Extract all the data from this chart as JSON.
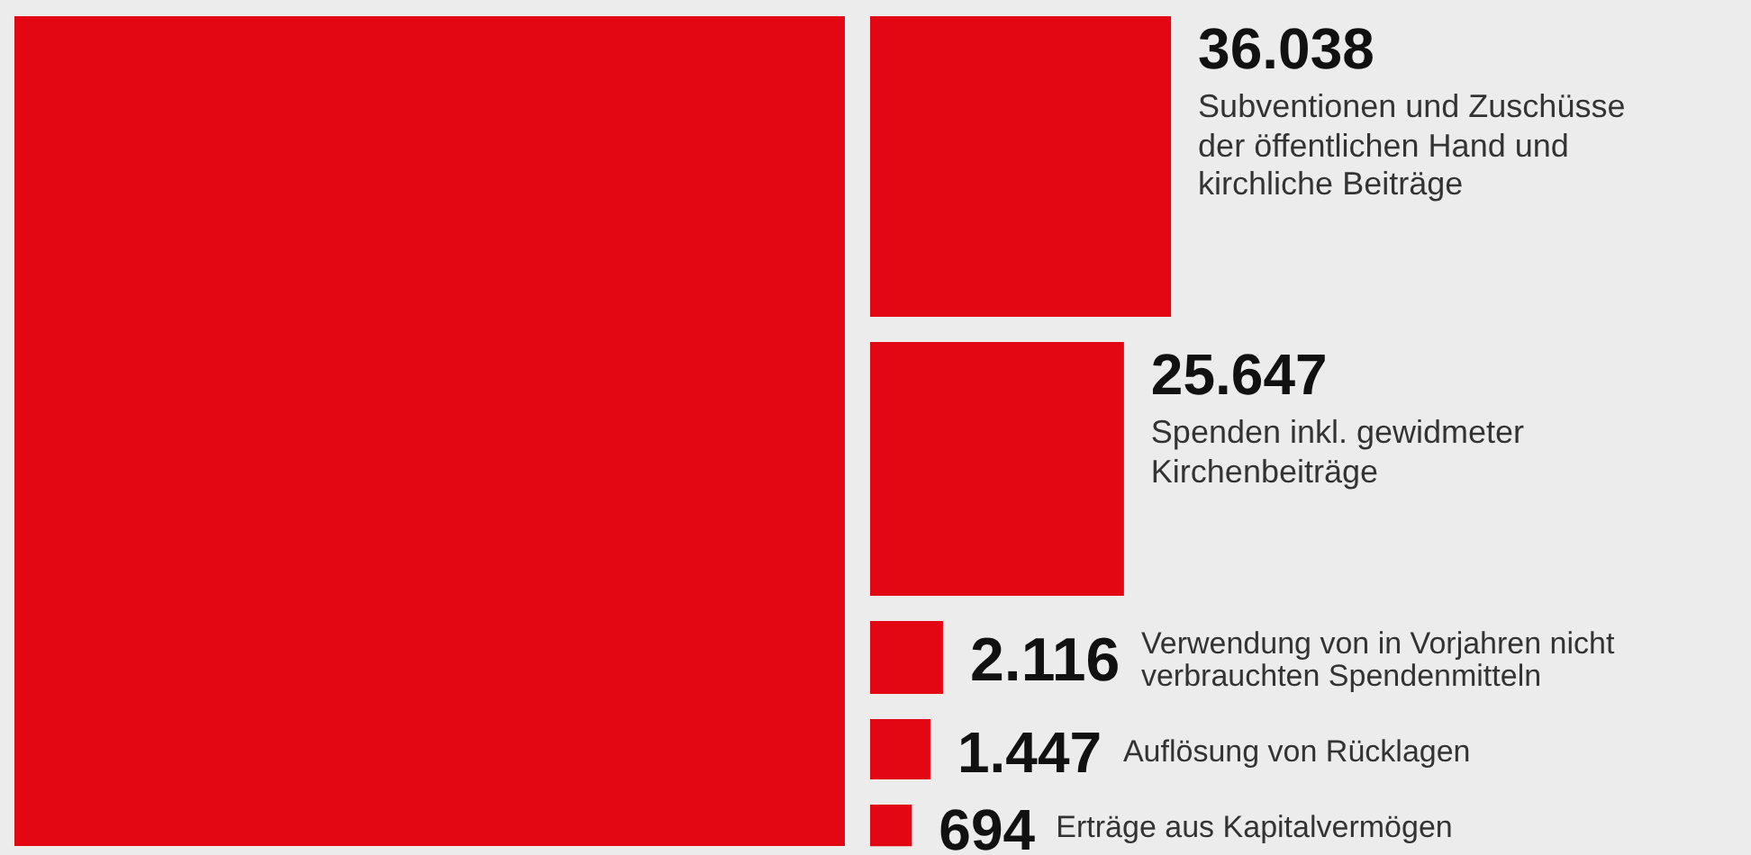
{
  "chart_data": {
    "type": "other",
    "categories": [
      null,
      "Subventionen und Zuschüsse der öffentlichen Hand und kirchliche Beiträge",
      "Spenden inkl. gewidmeter Kirchenbeiträge",
      "Verwendung von in Vorjahren nicht verbrauchten Spendenmitteln",
      "Auflösung von Rücklagen",
      "Erträge aus Kapitalvermögen"
    ],
    "values": [
      null,
      36038,
      25647,
      2116,
      1447,
      694
    ],
    "value_labels": [
      null,
      "36.038",
      "25.647",
      "2.116",
      "1.447",
      "694"
    ],
    "colors": [
      "#e30613",
      "#e30613",
      "#e30613",
      "#e30613",
      "#e30613",
      "#e30613"
    ]
  }
}
